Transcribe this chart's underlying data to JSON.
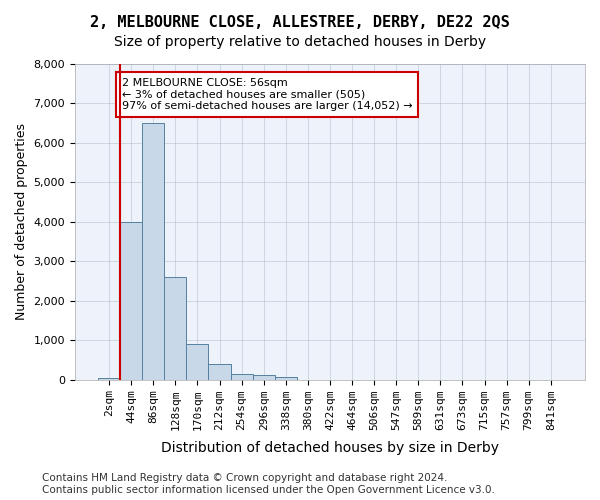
{
  "title": "2, MELBOURNE CLOSE, ALLESTREE, DERBY, DE22 2QS",
  "subtitle": "Size of property relative to detached houses in Derby",
  "xlabel": "Distribution of detached houses by size in Derby",
  "ylabel": "Number of detached properties",
  "bin_labels": [
    "2sqm",
    "44sqm",
    "86sqm",
    "128sqm",
    "170sqm",
    "212sqm",
    "254sqm",
    "296sqm",
    "338sqm",
    "380sqm",
    "422sqm",
    "464sqm",
    "506sqm",
    "547sqm",
    "589sqm",
    "631sqm",
    "673sqm",
    "715sqm",
    "757sqm",
    "799sqm",
    "841sqm"
  ],
  "bar_values": [
    50,
    4000,
    6500,
    2600,
    900,
    400,
    150,
    120,
    80,
    0,
    0,
    0,
    0,
    0,
    0,
    0,
    0,
    0,
    0,
    0,
    0
  ],
  "bar_color": "#c8d8e8",
  "bar_edge_color": "#5580a0",
  "property_line_color": "#cc0000",
  "annotation_text": "2 MELBOURNE CLOSE: 56sqm\n← 3% of detached houses are smaller (505)\n97% of semi-detached houses are larger (14,052) →",
  "annotation_box_color": "#ffffff",
  "annotation_box_edge_color": "#cc0000",
  "ylim": [
    0,
    8000
  ],
  "yticks": [
    0,
    1000,
    2000,
    3000,
    4000,
    5000,
    6000,
    7000,
    8000
  ],
  "background_color": "#eef2fa",
  "footer_text": "Contains HM Land Registry data © Crown copyright and database right 2024.\nContains public sector information licensed under the Open Government Licence v3.0.",
  "title_fontsize": 11,
  "subtitle_fontsize": 10,
  "xlabel_fontsize": 10,
  "ylabel_fontsize": 9,
  "tick_fontsize": 8,
  "footer_fontsize": 7.5
}
